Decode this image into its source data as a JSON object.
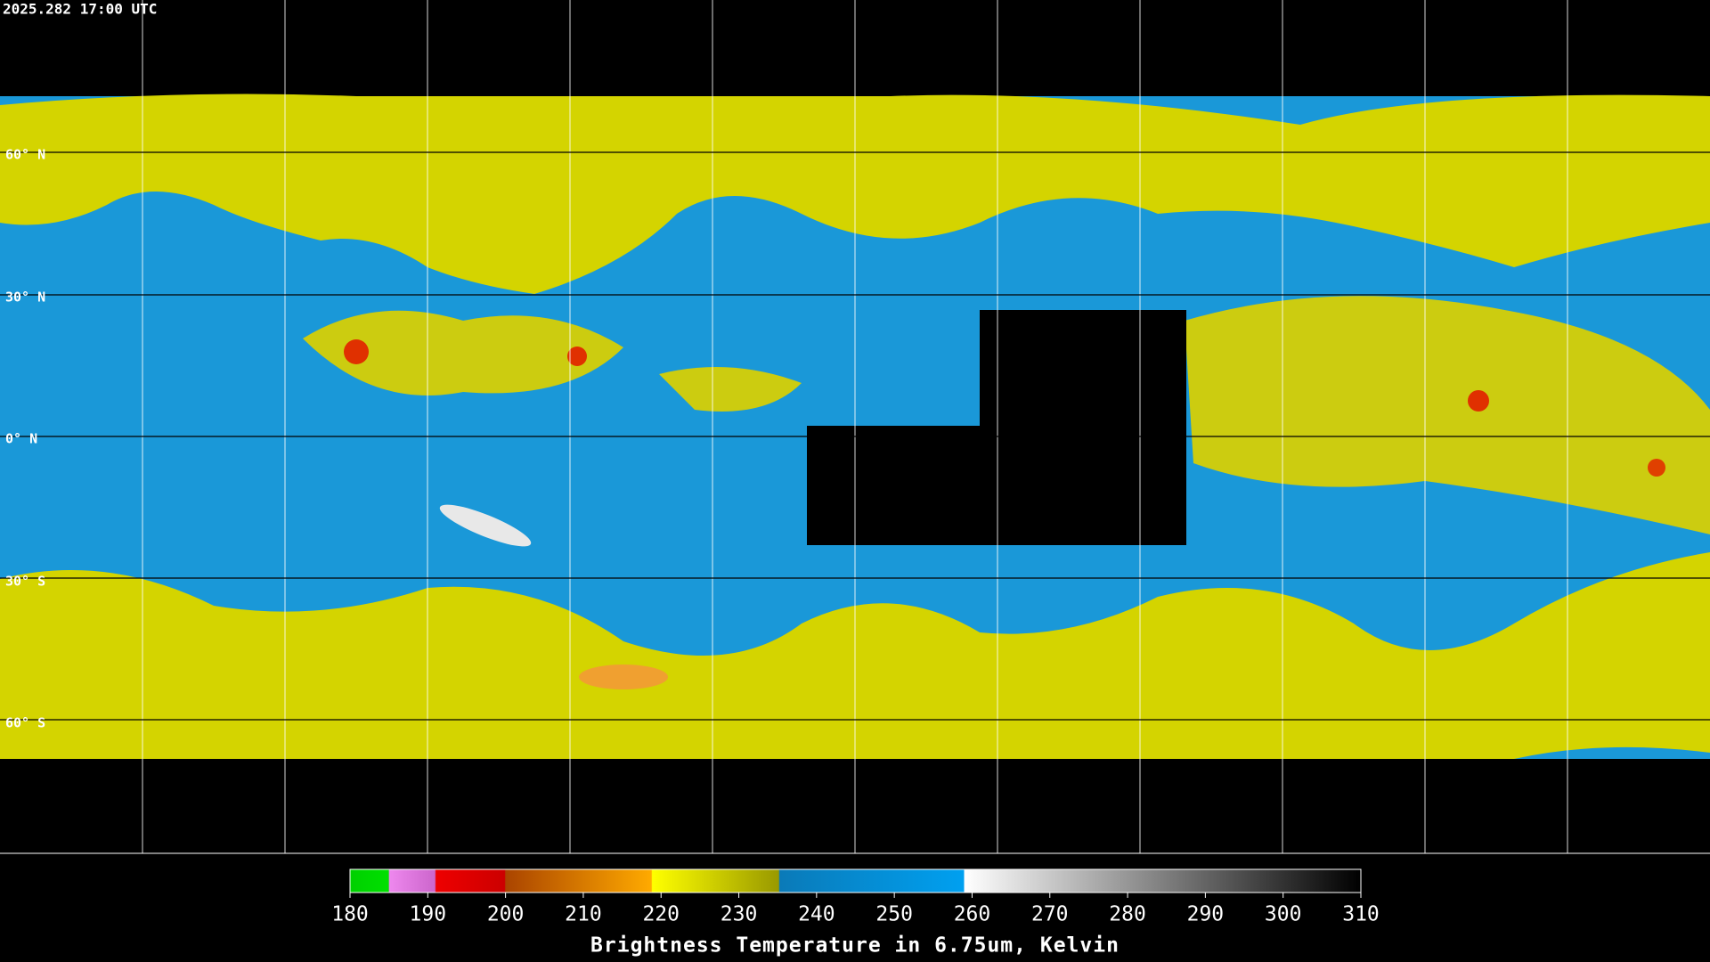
{
  "header": {
    "timestamp": "2025.282 17:00 UTC"
  },
  "map": {
    "lat_labels": [
      "60° N",
      "30° N",
      "0° N",
      "30° S",
      "60° S"
    ]
  },
  "colorbar": {
    "title": "Brightness Temperature in 6.75um, Kelvin",
    "range": [
      180,
      310
    ],
    "ticks": [
      180,
      190,
      200,
      210,
      220,
      230,
      240,
      250,
      260,
      270,
      280,
      290,
      300,
      310
    ]
  }
}
